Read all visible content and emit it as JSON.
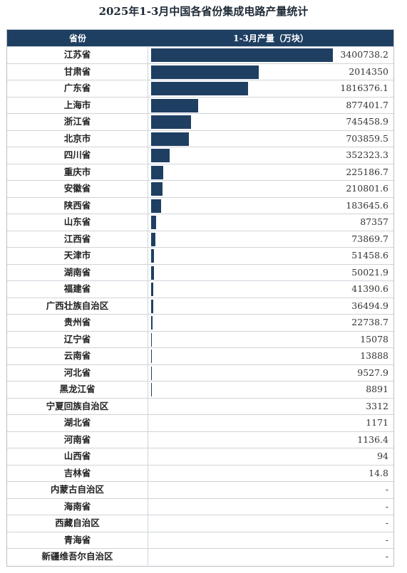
{
  "chart_data": {
    "type": "bar",
    "title": "2025年1-3月中国各省份集成电路产量统计",
    "header_province": "省份",
    "header_value": "1-3月产量（万块）",
    "categories": [
      "江苏省",
      "甘肃省",
      "广东省",
      "上海市",
      "浙江省",
      "北京市",
      "四川省",
      "重庆市",
      "安徽省",
      "陕西省",
      "山东省",
      "江西省",
      "天津市",
      "湖南省",
      "福建省",
      "广西壮族自治区",
      "贵州省",
      "辽宁省",
      "云南省",
      "河北省",
      "黑龙江省",
      "宁夏回族自治区",
      "湖北省",
      "河南省",
      "山西省",
      "吉林省",
      "内蒙古自治区",
      "海南省",
      "西藏自治区",
      "青海省",
      "新疆维吾尔自治区"
    ],
    "values": [
      3400738.2,
      2014350,
      1816376.1,
      877401.7,
      745458.9,
      703859.5,
      352323.3,
      225186.7,
      210801.6,
      183645.6,
      87357,
      73869.7,
      51458.6,
      50021.9,
      41390.6,
      36494.9,
      22738.7,
      15078,
      13888,
      9527.9,
      8891,
      3312,
      1171,
      1136.4,
      94,
      14.8,
      null,
      null,
      null,
      null,
      null
    ],
    "labels": [
      "3400738.2",
      "2014350",
      "1816376.1",
      "877401.7",
      "745458.9",
      "703859.5",
      "352323.3",
      "225186.7",
      "210801.6",
      "183645.6",
      "87357",
      "73869.7",
      "51458.6",
      "50021.9",
      "41390.6",
      "36494.9",
      "22738.7",
      "15078",
      "13888",
      "9527.9",
      "8891",
      "3312",
      "1171",
      "1136.4",
      "94",
      "14.8",
      "-",
      "-",
      "-",
      "-",
      "-"
    ],
    "colors": {
      "bar": "#1f3f62",
      "header_bg": "#1f3f62",
      "header_text": "#ffffff"
    }
  }
}
